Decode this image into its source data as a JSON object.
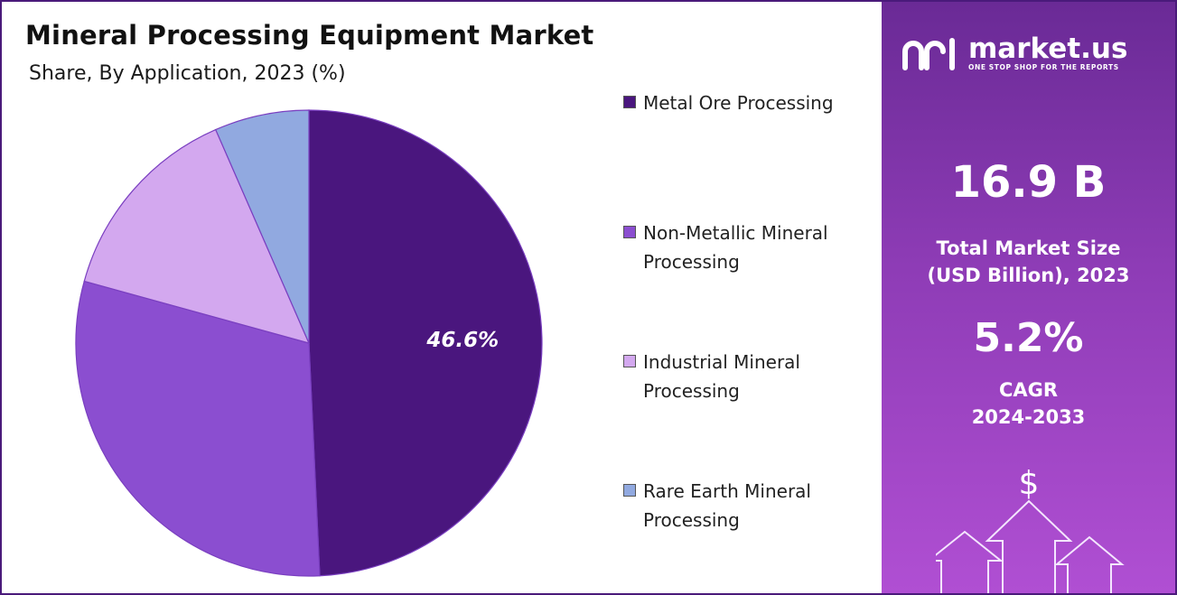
{
  "title": "Mineral Processing Equipment Market",
  "subtitle": "Share, By Application, 2023 (%)",
  "chart_data": {
    "type": "pie",
    "title": "Mineral Processing Equipment Market",
    "subtitle": "Share, By Application, 2023 (%)",
    "categories": [
      "Metal Ore Processing",
      "Non-Metallic Mineral Processing",
      "Industrial Mineral Processing",
      "Rare Earth Mineral Processing"
    ],
    "values": [
      46.6,
      28.4,
      13.4,
      6.2
    ],
    "value_labels": [
      "46.6%",
      "",
      "",
      ""
    ],
    "colors": [
      "#4a167e",
      "#8b4ed0",
      "#d3a8ef",
      "#91a9e0"
    ],
    "legend_position": "right",
    "start_angle_deg": 0,
    "direction": "clockwise"
  },
  "legend": {
    "items": [
      {
        "line1": "Metal Ore Processing",
        "line2": ""
      },
      {
        "line1": "Non-Metallic Mineral",
        "line2": "Processing"
      },
      {
        "line1": "Industrial Mineral",
        "line2": "Processing"
      },
      {
        "line1": "Rare Earth Mineral",
        "line2": "Processing"
      }
    ]
  },
  "brand": {
    "name": "market.us",
    "tagline": "ONE STOP SHOP FOR THE REPORTS"
  },
  "stats": {
    "market_size": "16.9 B",
    "market_size_label_line1": "Total Market Size",
    "market_size_label_line2": "(USD Billion), 2023",
    "cagr": "5.2%",
    "cagr_label_line1": "CAGR",
    "cagr_label_line2": "2024-2033"
  },
  "icons": {
    "logo": "market-us-logo-icon",
    "growth": "dollar-arrows-icon"
  },
  "panel_colors": {
    "top": "#6a2a96",
    "bottom": "#b04fd3"
  }
}
